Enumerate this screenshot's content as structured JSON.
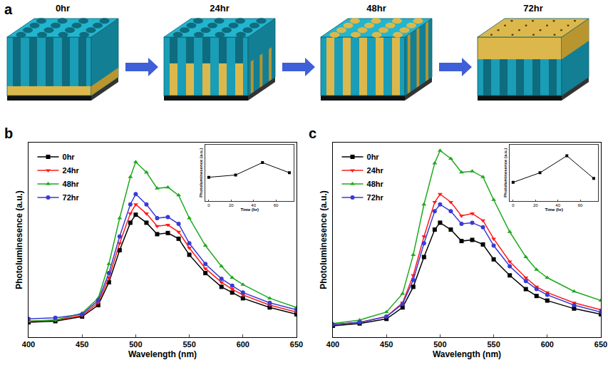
{
  "schematic": {
    "letter": "a",
    "stages": [
      "0hr",
      "24hr",
      "48hr",
      "72hr"
    ]
  },
  "chart_data": [
    {
      "letter": "b",
      "type": "line",
      "x": [
        400,
        425,
        450,
        465,
        475,
        485,
        495,
        500,
        510,
        520,
        530,
        540,
        550,
        565,
        580,
        590,
        600,
        625,
        650
      ],
      "xlim": [
        400,
        650
      ],
      "xticks": [
        400,
        450,
        500,
        550,
        600,
        650
      ],
      "ylim": [
        0,
        85
      ],
      "yticks": [],
      "tick_labels": "x",
      "grid": false,
      "x_label": "Wavelength (nm)",
      "y_label": "Photoluminesence (a.u.)",
      "legend": "top-left",
      "series": [
        {
          "name": "0hr",
          "color": "#000000",
          "marker": "square",
          "line_style": "solid",
          "values": [
            6.5,
            7,
            9,
            14,
            24,
            38,
            50,
            53.5,
            50,
            45,
            45.5,
            43,
            36,
            28,
            22,
            19.5,
            17,
            13,
            10
          ]
        },
        {
          "name": "24hr",
          "color": "#ff1a1a",
          "marker": "triangle-down",
          "line_style": "solid",
          "values": [
            7,
            7.5,
            9.5,
            15,
            26,
            41,
            54,
            58,
            54,
            48.5,
            49,
            46,
            39,
            30,
            24,
            21,
            18.5,
            14,
            11
          ]
        },
        {
          "name": "48hr",
          "color": "#1fa81f",
          "marker": "triangle-up",
          "line_style": "solid",
          "values": [
            7,
            7.5,
            10.5,
            17,
            32,
            52,
            70,
            76.5,
            72,
            65,
            65.5,
            62,
            52,
            40,
            31,
            26,
            23,
            17,
            13
          ]
        },
        {
          "name": "72hr",
          "color": "#3a3ad6",
          "marker": "circle",
          "line_style": "solid",
          "values": [
            8,
            8.5,
            10,
            16,
            28,
            44,
            58,
            62.5,
            58,
            52,
            52.5,
            49.5,
            41,
            32,
            25.5,
            22.5,
            19.5,
            15,
            12
          ]
        }
      ],
      "inset": {
        "type": "line",
        "x": [
          0,
          24,
          48,
          72
        ],
        "values": [
          0.42,
          0.46,
          0.68,
          0.5
        ],
        "xlim": [
          -3,
          76
        ],
        "xticks": [
          0,
          20,
          40,
          60
        ],
        "ylim": [
          0,
          1
        ],
        "yticks": [],
        "tick_labels": "x",
        "x_label": "Time (hr)",
        "y_label": "Photoluminesence (a.u.)",
        "color": "#000000",
        "marker": "square"
      }
    },
    {
      "letter": "c",
      "type": "line",
      "x": [
        400,
        425,
        450,
        465,
        475,
        485,
        495,
        500,
        510,
        520,
        530,
        540,
        550,
        565,
        580,
        590,
        600,
        625,
        650
      ],
      "xlim": [
        400,
        650
      ],
      "xticks": [
        400,
        450,
        500,
        550,
        600,
        650
      ],
      "ylim": [
        0,
        85
      ],
      "yticks": [],
      "tick_labels": "x",
      "grid": false,
      "x_label": "Wavelength (nm)",
      "y_label": "Photoluminesence (a.u.)",
      "legend": "top-left",
      "series": [
        {
          "name": "0hr",
          "color": "#000000",
          "marker": "square",
          "line_style": "solid",
          "values": [
            5,
            6,
            8,
            13,
            22,
            35,
            47,
            50,
            47,
            42,
            42.5,
            40.5,
            34,
            27,
            21,
            18,
            16,
            12.5,
            10
          ]
        },
        {
          "name": "24hr",
          "color": "#ff1a1a",
          "marker": "triangle-down",
          "line_style": "solid",
          "values": [
            5.5,
            6.5,
            9,
            15,
            27,
            44,
            59,
            62.5,
            59,
            53,
            54,
            51,
            43,
            33,
            26,
            22,
            19.5,
            15,
            12
          ]
        },
        {
          "name": "48hr",
          "color": "#1fa81f",
          "marker": "triangle-up",
          "line_style": "solid",
          "values": [
            6,
            7.5,
            11,
            19,
            36,
            58,
            76,
            81.5,
            78,
            72,
            72.5,
            70,
            60,
            46,
            35,
            29.5,
            26,
            20,
            16
          ]
        },
        {
          "name": "72hr",
          "color": "#3a3ad6",
          "marker": "circle",
          "line_style": "solid",
          "values": [
            5.5,
            6.5,
            9,
            14.5,
            25,
            41,
            55,
            58,
            55,
            49.5,
            50,
            48,
            40,
            31,
            24.5,
            21,
            18.5,
            14,
            11
          ]
        }
      ],
      "inset": {
        "type": "line",
        "x": [
          0,
          24,
          48,
          72
        ],
        "values": [
          0.33,
          0.5,
          0.8,
          0.4
        ],
        "xlim": [
          -3,
          76
        ],
        "xticks": [
          0,
          20,
          40,
          60
        ],
        "ylim": [
          0,
          1
        ],
        "yticks": [],
        "tick_labels": "x",
        "x_label": "Time (hr)",
        "y_label": "Photoluminesence (a.u.)",
        "color": "#000000",
        "marker": "square"
      }
    }
  ]
}
